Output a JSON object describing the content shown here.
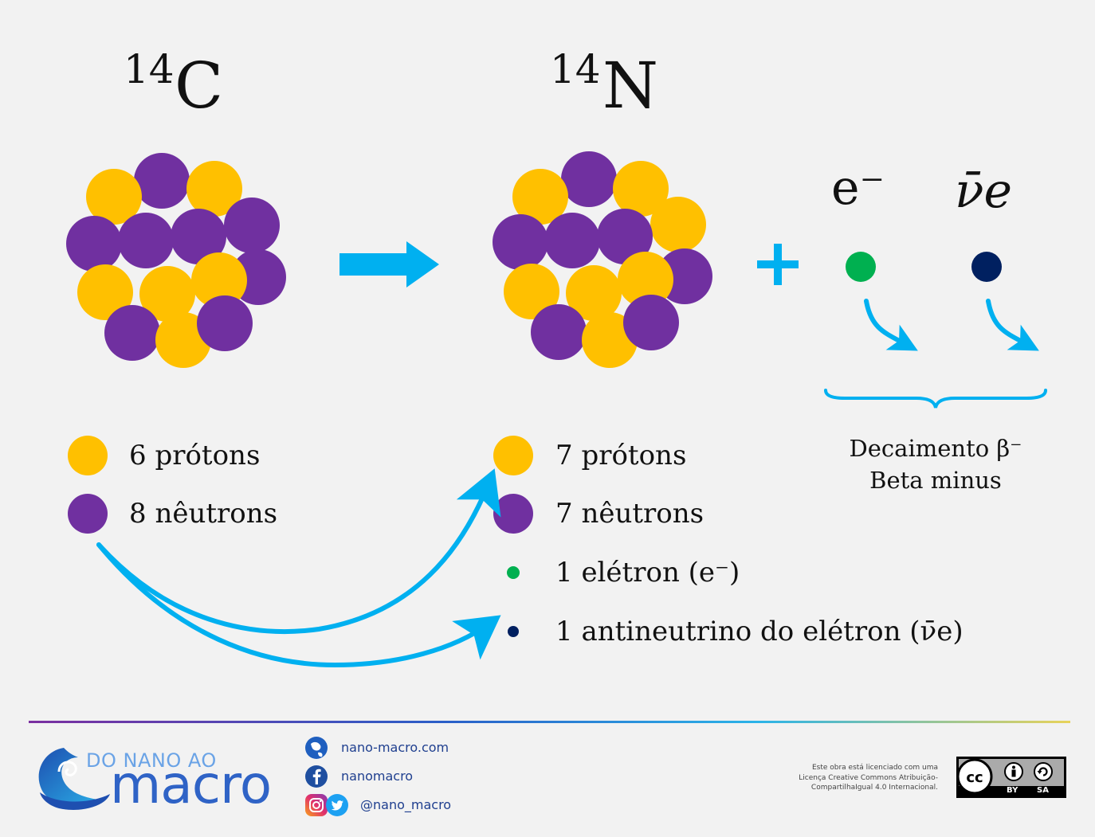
{
  "isotopes": {
    "carbon": {
      "mass": "14",
      "symbol": "C"
    },
    "nitrogen": {
      "mass": "14",
      "symbol": "N"
    }
  },
  "products": {
    "electron_label": "e⁻",
    "antineutrino_label": "ν̄e"
  },
  "decay": {
    "line1": "Decaimento β⁻",
    "line2": "Beta minus"
  },
  "legend_left": [
    {
      "text": "6 prótons"
    },
    {
      "text": "8 nêutrons"
    }
  ],
  "legend_right": [
    {
      "text": "7 prótons"
    },
    {
      "text": "7 nêutrons"
    },
    {
      "text": "1 elétron (e⁻)"
    },
    {
      "text": "1 antineutrino do elétron (ν̄e)"
    }
  ],
  "colors": {
    "proton": "#FFC000",
    "neutron": "#7030A0",
    "electron": "#00B050",
    "antineutrino": "#002060",
    "arrow": "#00B0F0"
  },
  "footer": {
    "logo_top": "DO NANO AO",
    "logo_bottom": "macro",
    "links": {
      "website": "nano-macro.com",
      "facebook": "nanomacro",
      "social": "@nano_macro"
    },
    "license": {
      "line1": "Este obra está licenciado com uma",
      "line2": "Licença Creative Commons Atribuição-",
      "line3": "CompartilhaIgual 4.0 Internacional."
    },
    "cc_badge": {
      "by": "BY",
      "sa": "SA"
    }
  }
}
